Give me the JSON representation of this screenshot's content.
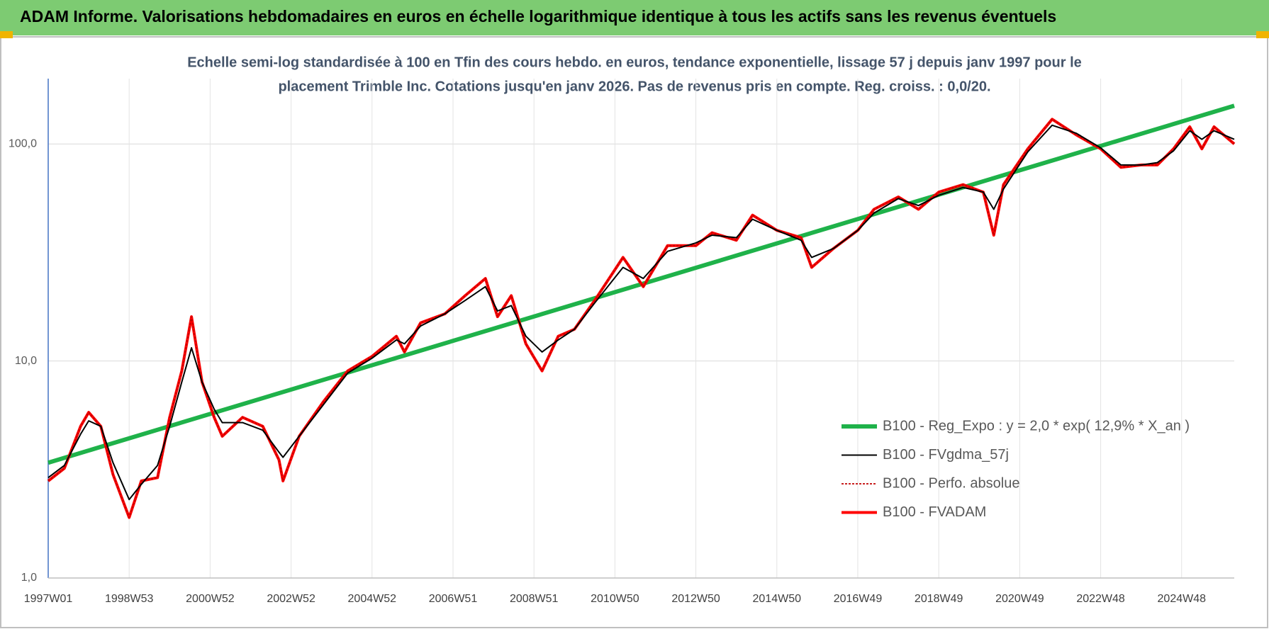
{
  "chart_data": {
    "type": "line",
    "title": "ADAM Informe. Valorisations hebdomadaires en euros en échelle logarithmique identique à tous les actifs sans les revenus éventuels",
    "subtitle": [
      "Echelle semi-log standardisée à 100 en Tfin des cours hebdo. en euros, tendance exponentielle, lissage 57 j depuis janv 1997 pour le",
      "placement Trimble Inc. Cotations jusqu'en janv 2026. Pas de revenus pris en compte. Reg. croiss. : 0,0/20."
    ],
    "log_y": true,
    "grid": true,
    "legend": "lower right",
    "xlim": [
      1997.0,
      2026.3
    ],
    "xticks": [
      {
        "value": 1997.0,
        "label": "1997W01"
      },
      {
        "value": 1999.0,
        "label": "1998W53"
      },
      {
        "value": 2001.0,
        "label": "2000W52"
      },
      {
        "value": 2003.0,
        "label": "2002W52"
      },
      {
        "value": 2005.0,
        "label": "2004W52"
      },
      {
        "value": 2007.0,
        "label": "2006W51"
      },
      {
        "value": 2009.0,
        "label": "2008W51"
      },
      {
        "value": 2011.0,
        "label": "2010W50"
      },
      {
        "value": 2013.0,
        "label": "2012W50"
      },
      {
        "value": 2015.0,
        "label": "2014W50"
      },
      {
        "value": 2017.0,
        "label": "2016W49"
      },
      {
        "value": 2019.0,
        "label": "2018W49"
      },
      {
        "value": 2021.0,
        "label": "2020W49"
      },
      {
        "value": 2023.0,
        "label": "2022W48"
      },
      {
        "value": 2025.0,
        "label": "2024W48"
      }
    ],
    "ylim": [
      1,
      200
    ],
    "yticks": [
      {
        "value": 1,
        "label": "1,0"
      },
      {
        "value": 10,
        "label": "10,0"
      },
      {
        "value": 100,
        "label": "100,0"
      }
    ],
    "x": [
      1997.0,
      1997.4,
      1997.8,
      1998.0,
      1998.3,
      1998.6,
      1999.0,
      1999.3,
      1999.7,
      2000.0,
      2000.3,
      2000.54,
      2000.8,
      2001.1,
      2001.3,
      2001.8,
      2002.3,
      2002.7,
      2002.8,
      2003.2,
      2003.8,
      2004.4,
      2005.0,
      2005.6,
      2005.8,
      2006.2,
      2006.8,
      2007.3,
      2007.8,
      2008.1,
      2008.44,
      2008.8,
      2009.2,
      2009.6,
      2010.0,
      2010.5,
      2011.2,
      2011.7,
      2012.3,
      2013.0,
      2013.4,
      2014.0,
      2014.4,
      2015.0,
      2015.6,
      2015.86,
      2016.4,
      2017.0,
      2017.4,
      2018.0,
      2018.5,
      2019.0,
      2019.6,
      2020.1,
      2020.36,
      2020.6,
      2021.2,
      2021.8,
      2022.4,
      2023.0,
      2023.5,
      2024.0,
      2024.4,
      2024.8,
      2025.2,
      2025.5,
      2025.8,
      2026.3
    ],
    "series": [
      {
        "name": "B100 - Reg_Expo : y = 2,0 * exp( 12,9% *  X_an )",
        "color": "#1fb24a",
        "style": "solid",
        "x": [
          1997.0,
          2026.3
        ],
        "values": [
          3.4,
          150
        ]
      },
      {
        "name": "B100 - FVgdma_57j",
        "color": "#000000",
        "style": "solid",
        "values": [
          2.9,
          3.3,
          4.6,
          5.3,
          5.0,
          3.4,
          2.3,
          2.7,
          3.3,
          5.0,
          8.0,
          11.5,
          8.0,
          6.0,
          5.2,
          5.2,
          4.8,
          3.8,
          3.6,
          4.5,
          6.3,
          8.8,
          10.3,
          12.5,
          12,
          14.5,
          16.5,
          19,
          22,
          17,
          18,
          13,
          11,
          12.5,
          14,
          18.5,
          27,
          24,
          32,
          35,
          38,
          37,
          45,
          40,
          36,
          30,
          33,
          40,
          48,
          56,
          52,
          58,
          63,
          60,
          50,
          62,
          92,
          122,
          112,
          96,
          80,
          80,
          82,
          93,
          115,
          105,
          115,
          105
        ]
      },
      {
        "name": "B100 - Perfo. absolue",
        "color": "#c00000",
        "style": "dotted",
        "values": [
          2.8,
          3.2,
          5.0,
          5.8,
          5.0,
          3.0,
          1.9,
          2.8,
          2.9,
          5.5,
          9.0,
          16,
          8.0,
          5.5,
          4.5,
          5.5,
          5.0,
          3.5,
          2.8,
          4.5,
          6.5,
          9.0,
          10.5,
          13,
          11,
          15,
          16.5,
          20,
          24,
          16,
          20,
          12,
          9,
          13,
          14,
          19,
          30,
          22,
          34,
          34,
          39,
          36,
          47,
          40,
          37,
          27,
          33,
          40,
          50,
          57,
          50,
          60,
          65,
          60,
          38,
          65,
          95,
          130,
          110,
          95,
          78,
          80,
          80,
          95,
          120,
          95,
          120,
          100
        ]
      },
      {
        "name": "B100 - FVADAM",
        "color": "#ff0000",
        "style": "solid",
        "values": [
          2.8,
          3.2,
          5.0,
          5.8,
          5.0,
          3.0,
          1.9,
          2.8,
          2.9,
          5.5,
          9.0,
          16,
          8.0,
          5.5,
          4.5,
          5.5,
          5.0,
          3.5,
          2.8,
          4.5,
          6.5,
          9.0,
          10.5,
          13,
          11,
          15,
          16.5,
          20,
          24,
          16,
          20,
          12,
          9,
          13,
          14,
          19,
          30,
          22,
          34,
          34,
          39,
          36,
          47,
          40,
          37,
          27,
          33,
          40,
          50,
          57,
          50,
          60,
          65,
          60,
          38,
          65,
          95,
          130,
          110,
          95,
          78,
          80,
          80,
          95,
          120,
          95,
          120,
          100
        ]
      }
    ]
  }
}
